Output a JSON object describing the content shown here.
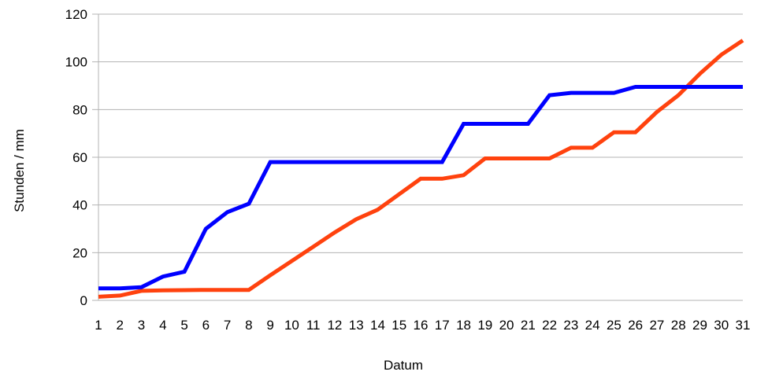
{
  "chart_data": {
    "type": "line",
    "title": "",
    "xlabel": "Datum",
    "ylabel": "Stunden / mm",
    "ylim": [
      0,
      120
    ],
    "yticks": [
      0,
      20,
      40,
      60,
      80,
      100,
      120
    ],
    "categories": [
      "1",
      "2",
      "3",
      "4",
      "5",
      "6",
      "7",
      "8",
      "9",
      "10",
      "11",
      "12",
      "13",
      "14",
      "15",
      "16",
      "17",
      "18",
      "19",
      "20",
      "21",
      "22",
      "23",
      "24",
      "25",
      "26",
      "27",
      "28",
      "29",
      "30",
      "31"
    ],
    "grid": "horizontal",
    "legend": "none",
    "series": [
      {
        "color": "#0000ff",
        "values": [
          5,
          5,
          5.5,
          10,
          12,
          30,
          37,
          40.5,
          58,
          58,
          58,
          58,
          58,
          58,
          58,
          58,
          58,
          74,
          74,
          74,
          74,
          86,
          87,
          87,
          87,
          89.5,
          89.5,
          89.5,
          89.5,
          89.5,
          89.5
        ]
      },
      {
        "color": "#ff420e",
        "values": [
          1.5,
          2,
          4,
          4.2,
          4.3,
          4.4,
          4.4,
          4.4,
          10.5,
          16.5,
          22.5,
          28.5,
          34,
          38,
          44.5,
          51,
          51,
          52.5,
          59.5,
          59.5,
          59.5,
          59.5,
          64,
          64,
          70.5,
          70.5,
          79,
          86,
          95,
          103,
          109
        ]
      }
    ]
  }
}
